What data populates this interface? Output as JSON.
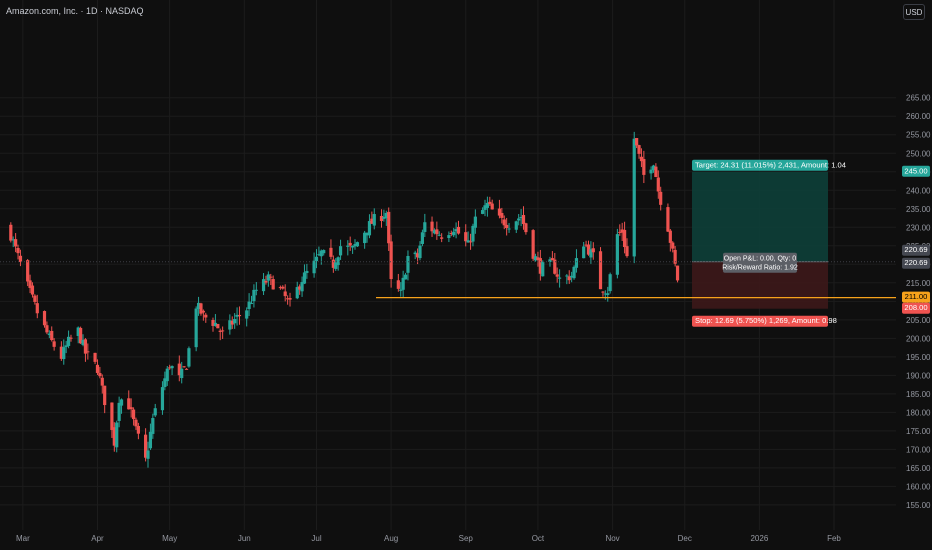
{
  "header": {
    "title": "Amazon.com, Inc. · 1D · NASDAQ",
    "currency": "USD"
  },
  "colors": {
    "background": "#0f0f0f",
    "grid": "#1c1c1c",
    "up": "#26a69a",
    "down": "#ef5350",
    "axis_text": "#9598a1",
    "orange": "#f7a21b",
    "profit_zone": "#0e3d37",
    "loss_zone": "#3b1819",
    "label_gray": "#454851"
  },
  "chart_data": {
    "type": "candlestick",
    "title": "Amazon.com, Inc. · 1D · NASDAQ",
    "ylim": [
      152,
      286
    ],
    "grid": true,
    "y_ticks": [
      "155.00",
      "160.00",
      "165.00",
      "170.00",
      "175.00",
      "180.00",
      "185.00",
      "190.00",
      "195.00",
      "200.00",
      "205.00",
      "210.00",
      "215.00",
      "220.00",
      "225.00",
      "230.00",
      "235.00",
      "240.00",
      "245.00",
      "250.00",
      "255.00",
      "260.00",
      "265.00"
    ],
    "x_ticks": [
      "Mar",
      "Apr",
      "May",
      "Jun",
      "Jul",
      "Aug",
      "Sep",
      "Oct",
      "Nov",
      "Dec",
      "2026",
      "Feb"
    ],
    "close_path": [
      {
        "date": "2025-02-24",
        "close": 228
      },
      {
        "date": "2025-02-27",
        "close": 222
      },
      {
        "date": "2025-03-03",
        "close": 214
      },
      {
        "date": "2025-03-07",
        "close": 207
      },
      {
        "date": "2025-03-12",
        "close": 200
      },
      {
        "date": "2025-03-17",
        "close": 195
      },
      {
        "date": "2025-03-20",
        "close": 199
      },
      {
        "date": "2025-03-24",
        "close": 202
      },
      {
        "date": "2025-03-27",
        "close": 196
      },
      {
        "date": "2025-04-01",
        "close": 192
      },
      {
        "date": "2025-04-03",
        "close": 186
      },
      {
        "date": "2025-04-08",
        "close": 172
      },
      {
        "date": "2025-04-10",
        "close": 184
      },
      {
        "date": "2025-04-14",
        "close": 182
      },
      {
        "date": "2025-04-17",
        "close": 175
      },
      {
        "date": "2025-04-21",
        "close": 167
      },
      {
        "date": "2025-04-24",
        "close": 178
      },
      {
        "date": "2025-04-28",
        "close": 187
      },
      {
        "date": "2025-05-01",
        "close": 193
      },
      {
        "date": "2025-05-05",
        "close": 189
      },
      {
        "date": "2025-05-08",
        "close": 193
      },
      {
        "date": "2025-05-12",
        "close": 209
      },
      {
        "date": "2025-05-15",
        "close": 206
      },
      {
        "date": "2025-05-20",
        "close": 204
      },
      {
        "date": "2025-05-23",
        "close": 201
      },
      {
        "date": "2025-05-28",
        "close": 205
      },
      {
        "date": "2025-06-02",
        "close": 208
      },
      {
        "date": "2025-06-06",
        "close": 213
      },
      {
        "date": "2025-06-11",
        "close": 216
      },
      {
        "date": "2025-06-16",
        "close": 213
      },
      {
        "date": "2025-06-20",
        "close": 209
      },
      {
        "date": "2025-06-25",
        "close": 216
      },
      {
        "date": "2025-06-30",
        "close": 220
      },
      {
        "date": "2025-07-03",
        "close": 223
      },
      {
        "date": "2025-07-08",
        "close": 220
      },
      {
        "date": "2025-07-11",
        "close": 225
      },
      {
        "date": "2025-07-16",
        "close": 224
      },
      {
        "date": "2025-07-21",
        "close": 229
      },
      {
        "date": "2025-07-25",
        "close": 232
      },
      {
        "date": "2025-07-30",
        "close": 234
      },
      {
        "date": "2025-08-01",
        "close": 215
      },
      {
        "date": "2025-08-05",
        "close": 212
      },
      {
        "date": "2025-08-08",
        "close": 222
      },
      {
        "date": "2025-08-12",
        "close": 222
      },
      {
        "date": "2025-08-15",
        "close": 231
      },
      {
        "date": "2025-08-19",
        "close": 229
      },
      {
        "date": "2025-08-22",
        "close": 228
      },
      {
        "date": "2025-08-27",
        "close": 230
      },
      {
        "date": "2025-09-02",
        "close": 225
      },
      {
        "date": "2025-09-05",
        "close": 232
      },
      {
        "date": "2025-09-10",
        "close": 236
      },
      {
        "date": "2025-09-15",
        "close": 232
      },
      {
        "date": "2025-09-19",
        "close": 231
      },
      {
        "date": "2025-09-24",
        "close": 233
      },
      {
        "date": "2025-09-29",
        "close": 223
      },
      {
        "date": "2025-10-02",
        "close": 219
      },
      {
        "date": "2025-10-07",
        "close": 220
      },
      {
        "date": "2025-10-10",
        "close": 216
      },
      {
        "date": "2025-10-15",
        "close": 217
      },
      {
        "date": "2025-10-20",
        "close": 226
      },
      {
        "date": "2025-10-24",
        "close": 222
      },
      {
        "date": "2025-10-27",
        "close": 214
      },
      {
        "date": "2025-10-30",
        "close": 213
      },
      {
        "date": "2025-11-03",
        "close": 228
      },
      {
        "date": "2025-11-05",
        "close": 229
      },
      {
        "date": "2025-11-07",
        "close": 222
      },
      {
        "date": "2025-11-10",
        "close": 254
      },
      {
        "date": "2025-11-12",
        "close": 249
      },
      {
        "date": "2025-11-14",
        "close": 244
      },
      {
        "date": "2025-11-18",
        "close": 248
      },
      {
        "date": "2025-11-20",
        "close": 240
      },
      {
        "date": "2025-11-24",
        "close": 230
      },
      {
        "date": "2025-11-26",
        "close": 223
      },
      {
        "date": "2025-11-28",
        "close": 216
      }
    ]
  },
  "support_line": {
    "price": 211.0,
    "label": "211.00"
  },
  "position": {
    "entry_label": "220.69",
    "entry_label_alt": "220.69",
    "target_price_label": "245.00",
    "stop_price_label": "208.00",
    "target_text": "Target: 24.31 (11.015%) 2,431, Amount: 1.04",
    "stop_text": "Stop: 12.69 (5.750%) 1,269, Amount: 0.98",
    "pnl_text": "Open P&L: 0.00, Qty: 0",
    "rr_text": "Risk/Reward Ratio: 1.92"
  }
}
